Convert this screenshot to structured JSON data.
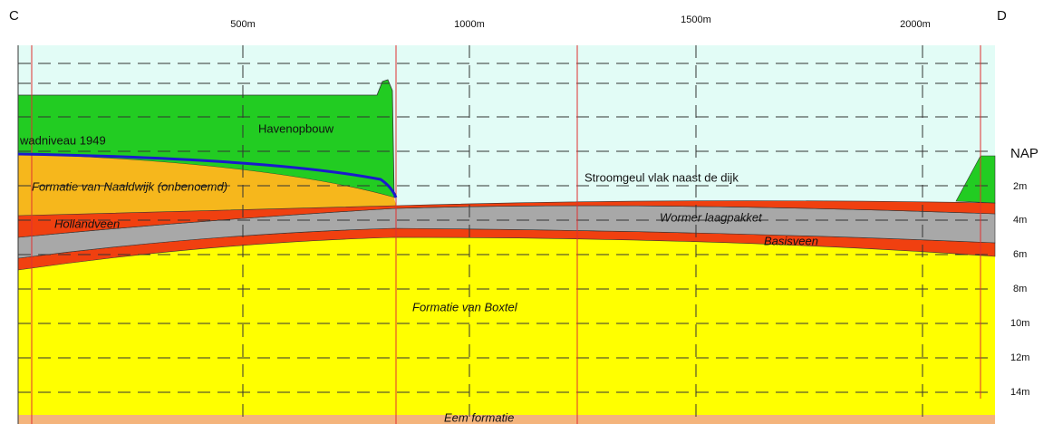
{
  "header": {
    "left_end": "C",
    "right_end": "D"
  },
  "distance_labels": [
    "500m",
    "1000m",
    "1500m",
    "2000m"
  ],
  "depth_labels": [
    "NAP",
    "2m",
    "4m",
    "6m",
    "8m",
    "10m",
    "12m",
    "14m"
  ],
  "layers": {
    "havenopbouw": "Havenopbouw",
    "naaldwijk": "Formatie van Naaldwijk (onbenoemd)",
    "stroomgeul": "Stroomgeul vlak naast de dijk",
    "hollandveen": "Hollandveen",
    "wormer": "Wormer laagpakket",
    "basisveen": "Basisveen",
    "boxtel": "Formatie van Boxtel",
    "eem": "Eem formatie"
  },
  "annotations": {
    "wadniveau": "wadniveau 1949"
  }
}
